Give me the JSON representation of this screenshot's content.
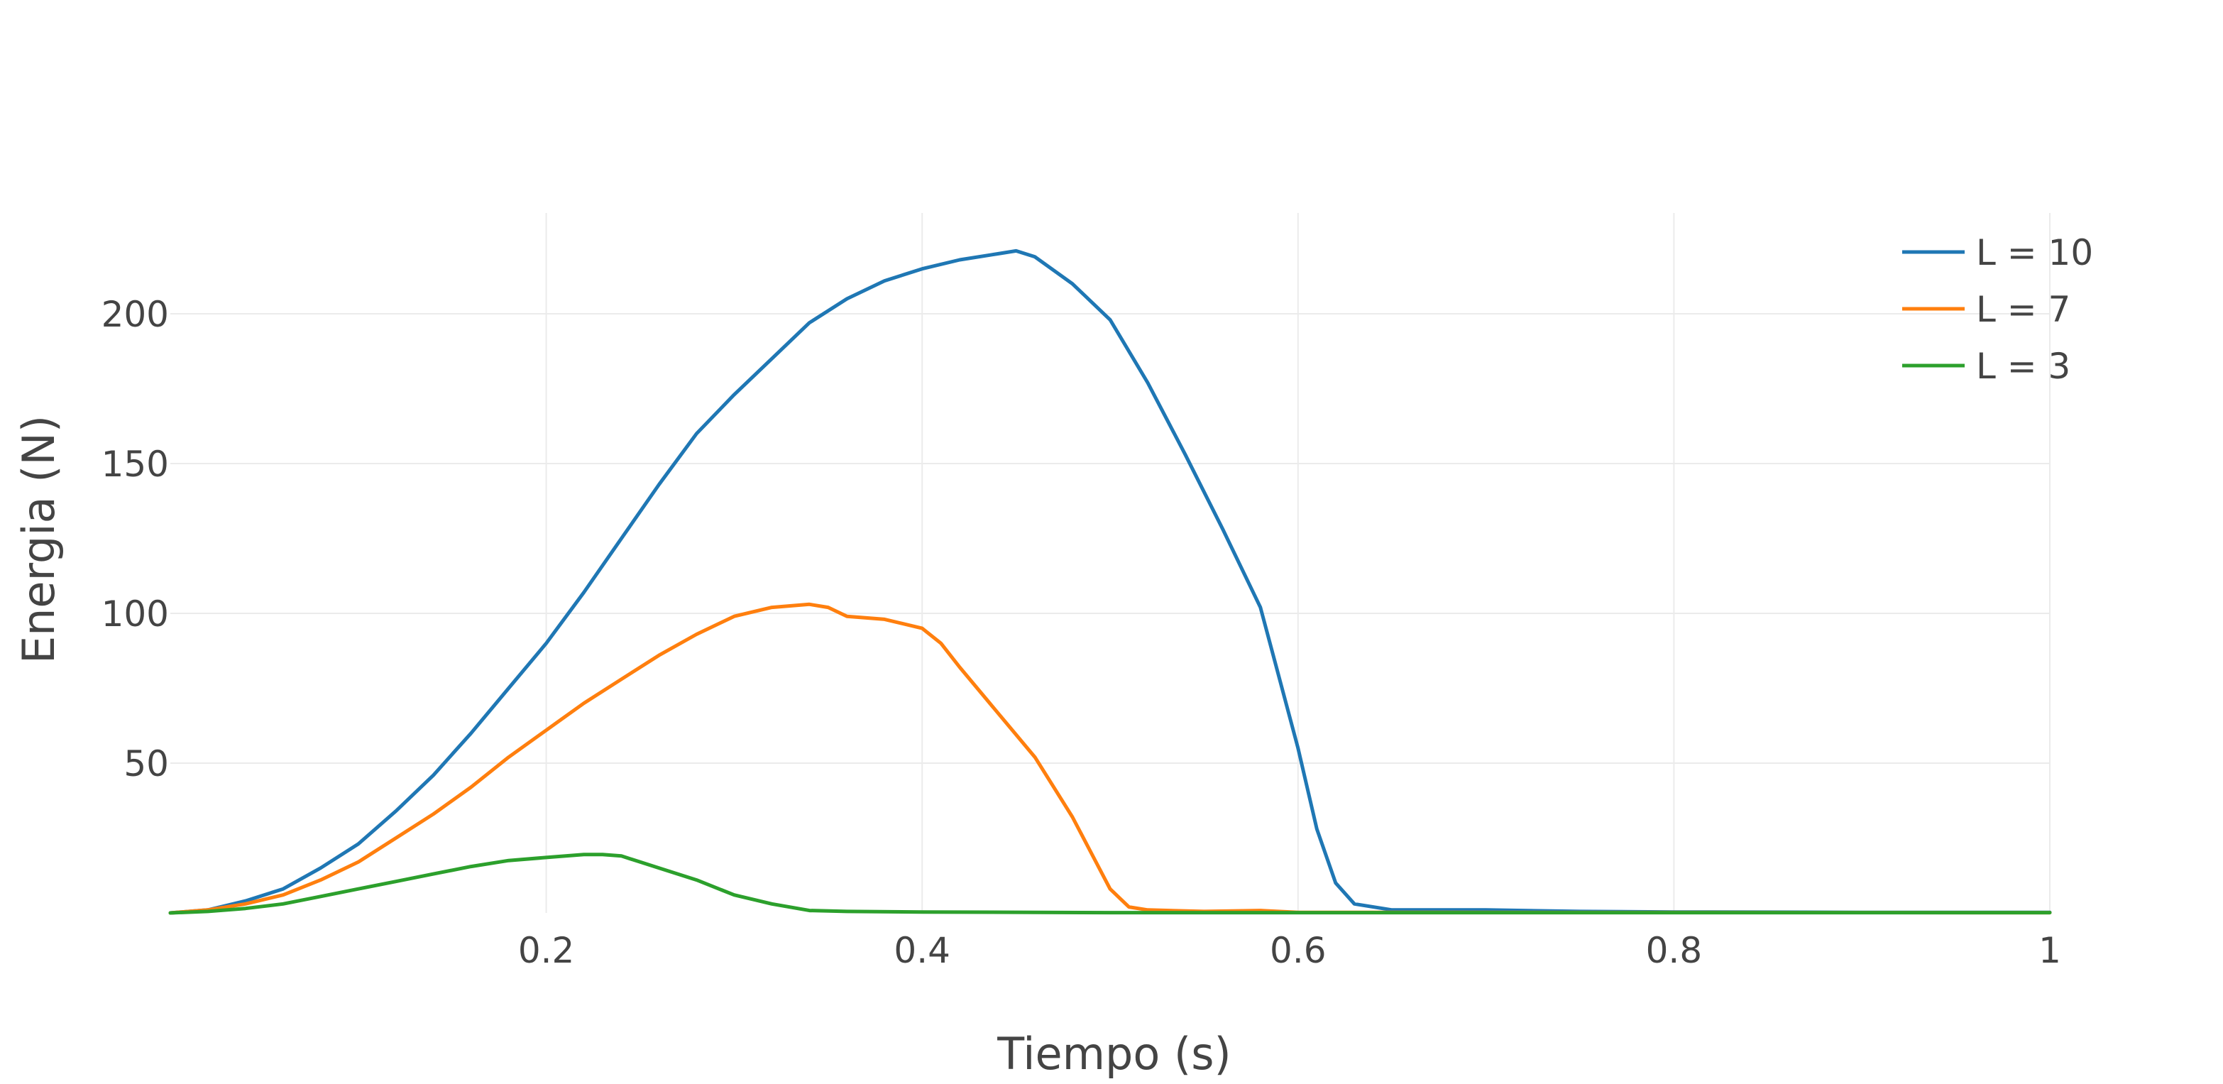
{
  "chart_data": {
    "type": "line",
    "title": "",
    "xlabel": "Tiempo (s)",
    "ylabel": "Energia (N)",
    "xlim": [
      0,
      1
    ],
    "ylim": [
      0,
      220
    ],
    "x_ticks": [
      0.2,
      0.4,
      0.6,
      0.8,
      1
    ],
    "x_tick_labels": [
      "0.2",
      "0.4",
      "0.6",
      "0.8",
      "1"
    ],
    "y_ticks": [
      50,
      100,
      150,
      200
    ],
    "y_tick_labels": [
      "50",
      "100",
      "150",
      "200"
    ],
    "grid": true,
    "legend_position": "top-right",
    "series": [
      {
        "name": "L = 10",
        "color": "#1f77b4",
        "x": [
          0,
          0.02,
          0.04,
          0.06,
          0.08,
          0.1,
          0.12,
          0.14,
          0.16,
          0.18,
          0.2,
          0.22,
          0.24,
          0.26,
          0.28,
          0.3,
          0.32,
          0.34,
          0.36,
          0.38,
          0.4,
          0.42,
          0.44,
          0.45,
          0.46,
          0.48,
          0.5,
          0.52,
          0.54,
          0.56,
          0.58,
          0.6,
          0.61,
          0.62,
          0.63,
          0.65,
          0.7,
          0.75,
          0.8,
          0.9,
          1.0
        ],
        "y": [
          0,
          1,
          4,
          8,
          15,
          23,
          34,
          46,
          60,
          75,
          90,
          107,
          125,
          143,
          160,
          173,
          185,
          197,
          205,
          211,
          215,
          218,
          220,
          221,
          219,
          210,
          198,
          177,
          153,
          128,
          102,
          55,
          28,
          10,
          3,
          1,
          1,
          0.5,
          0.3,
          0.2,
          0.2
        ]
      },
      {
        "name": "L = 7",
        "color": "#ff7f0e",
        "x": [
          0,
          0.02,
          0.04,
          0.06,
          0.08,
          0.1,
          0.12,
          0.14,
          0.16,
          0.18,
          0.2,
          0.22,
          0.24,
          0.26,
          0.28,
          0.3,
          0.32,
          0.34,
          0.35,
          0.36,
          0.38,
          0.4,
          0.41,
          0.42,
          0.44,
          0.46,
          0.47,
          0.48,
          0.49,
          0.5,
          0.51,
          0.52,
          0.55,
          0.58,
          0.6,
          1.0
        ],
        "y": [
          0,
          1,
          3,
          6,
          11,
          17,
          25,
          33,
          42,
          52,
          61,
          70,
          78,
          86,
          93,
          99,
          102,
          103,
          102,
          99,
          98,
          95,
          90,
          82,
          67,
          52,
          42,
          32,
          20,
          8,
          2,
          1,
          0.5,
          0.8,
          0.2,
          0.1
        ]
      },
      {
        "name": "L = 3",
        "color": "#2ca02c",
        "x": [
          0,
          0.02,
          0.04,
          0.06,
          0.08,
          0.1,
          0.12,
          0.14,
          0.16,
          0.18,
          0.2,
          0.22,
          0.23,
          0.24,
          0.25,
          0.26,
          0.28,
          0.3,
          0.32,
          0.34,
          0.36,
          0.4,
          0.5,
          0.6,
          1.0
        ],
        "y": [
          0,
          0.5,
          1.5,
          3,
          5.5,
          8,
          10.5,
          13,
          15.5,
          17.5,
          18.5,
          19.5,
          19.5,
          19,
          17,
          15,
          11,
          6,
          3,
          0.8,
          0.5,
          0.3,
          0.1,
          0.1,
          0.1
        ]
      }
    ]
  }
}
